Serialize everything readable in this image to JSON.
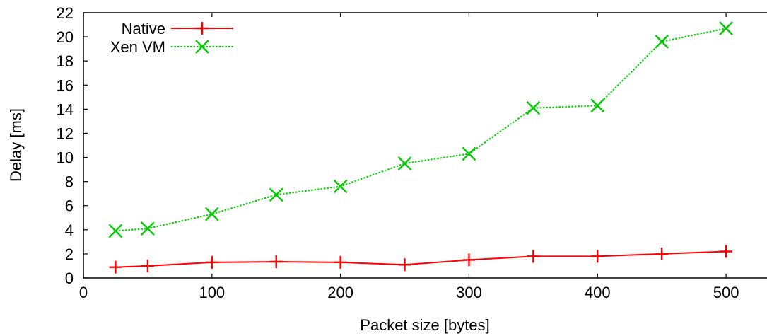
{
  "chart_data": {
    "type": "line",
    "xlabel": "Packet size [bytes]",
    "ylabel": "Delay [ms]",
    "xlim": [
      0,
      550
    ],
    "ylim": [
      0,
      22
    ],
    "x_ticks": [
      0,
      100,
      200,
      300,
      400,
      500
    ],
    "y_ticks": [
      0,
      2,
      4,
      6,
      8,
      10,
      12,
      14,
      16,
      18,
      20,
      22
    ],
    "legend_position": "top-left",
    "grid": false,
    "series": [
      {
        "name": "Native",
        "color": "#ff0000",
        "marker": "plus",
        "line_style": "solid",
        "points": [
          [
            25,
            0.9
          ],
          [
            50,
            1.0
          ],
          [
            100,
            1.3
          ],
          [
            150,
            1.35
          ],
          [
            200,
            1.3
          ],
          [
            250,
            1.1
          ],
          [
            300,
            1.5
          ],
          [
            350,
            1.8
          ],
          [
            400,
            1.8
          ],
          [
            450,
            2.0
          ],
          [
            500,
            2.2
          ]
        ]
      },
      {
        "name": "Xen VM",
        "color": "#00cc00",
        "marker": "cross",
        "line_style": "dotted",
        "points": [
          [
            25,
            3.9
          ],
          [
            50,
            4.1
          ],
          [
            100,
            5.3
          ],
          [
            150,
            6.9
          ],
          [
            200,
            7.6
          ],
          [
            250,
            9.5
          ],
          [
            300,
            10.3
          ],
          [
            350,
            14.1
          ],
          [
            400,
            14.3
          ],
          [
            450,
            19.6
          ],
          [
            500,
            20.7
          ]
        ]
      }
    ]
  }
}
